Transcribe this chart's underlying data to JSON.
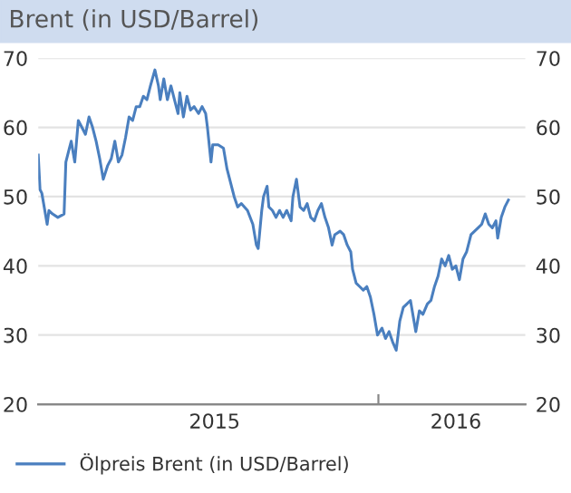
{
  "chart_data": {
    "type": "line",
    "title": "Brent (in USD/Barrel)",
    "x": [
      "2014-12-15",
      "2014-12-17",
      "2014-12-19",
      "2014-12-21",
      "2014-12-25",
      "2014-12-27",
      "2014-12-31",
      "2015-01-06",
      "2015-01-13",
      "2015-01-15",
      "2015-01-19",
      "2015-01-21",
      "2015-01-25",
      "2015-01-29",
      "2015-02-02",
      "2015-02-06",
      "2015-02-10",
      "2015-02-14",
      "2015-02-18",
      "2015-02-22",
      "2015-02-26",
      "2015-03-03",
      "2015-03-07",
      "2015-03-11",
      "2015-03-15",
      "2015-03-19",
      "2015-03-23",
      "2015-03-27",
      "2015-03-31",
      "2015-04-04",
      "2015-04-08",
      "2015-04-12",
      "2015-04-16",
      "2015-04-20",
      "2015-04-25",
      "2015-04-29",
      "2015-05-01",
      "2015-05-05",
      "2015-05-09",
      "2015-05-13",
      "2015-05-17",
      "2015-05-21",
      "2015-05-23",
      "2015-05-27",
      "2015-05-31",
      "2015-06-04",
      "2015-06-08",
      "2015-06-13",
      "2015-06-17",
      "2015-06-21",
      "2015-06-23",
      "2015-06-27",
      "2015-06-29",
      "2015-07-05",
      "2015-07-11",
      "2015-07-15",
      "2015-07-19",
      "2015-07-23",
      "2015-07-27",
      "2015-07-31",
      "2015-08-07",
      "2015-08-13",
      "2015-08-17",
      "2015-08-19",
      "2015-08-23",
      "2015-08-25",
      "2015-08-29",
      "2015-08-31",
      "2015-09-04",
      "2015-09-08",
      "2015-09-12",
      "2015-09-16",
      "2015-09-20",
      "2015-09-25",
      "2015-09-27",
      "2015-10-01",
      "2015-10-05",
      "2015-10-09",
      "2015-10-13",
      "2015-10-17",
      "2015-10-21",
      "2015-10-25",
      "2015-10-29",
      "2015-11-02",
      "2015-11-06",
      "2015-11-10",
      "2015-11-13",
      "2015-11-19",
      "2015-11-23",
      "2015-11-27",
      "2015-12-01",
      "2015-12-03",
      "2015-12-07",
      "2015-12-11",
      "2015-12-15",
      "2015-12-19",
      "2015-12-23",
      "2015-12-27",
      "2015-12-31",
      "2016-01-05",
      "2016-01-09",
      "2016-01-13",
      "2016-01-17",
      "2016-01-21",
      "2016-01-25",
      "2016-01-29",
      "2016-02-02",
      "2016-02-06",
      "2016-02-10",
      "2016-02-12",
      "2016-02-16",
      "2016-02-20",
      "2016-02-25",
      "2016-02-29",
      "2016-03-04",
      "2016-03-08",
      "2016-03-12",
      "2016-03-16",
      "2016-03-20",
      "2016-03-24",
      "2016-03-28",
      "2016-04-01",
      "2016-04-05",
      "2016-04-09",
      "2016-04-14",
      "2016-04-18",
      "2016-04-22",
      "2016-04-26",
      "2016-04-30",
      "2016-05-04",
      "2016-05-08",
      "2016-05-12",
      "2016-05-14",
      "2016-05-18",
      "2016-05-22",
      "2016-05-26"
    ],
    "series": [
      {
        "name": "Ölpreis Brent (in USD/Barrel)",
        "color": "#4a7fbf",
        "values": [
          56,
          51,
          50.5,
          49,
          46,
          48,
          47.5,
          47,
          47.5,
          55,
          57,
          58,
          55,
          61,
          60,
          59,
          61.5,
          60,
          58,
          55.5,
          52.5,
          54.5,
          55.5,
          58,
          55,
          56,
          58.5,
          61.5,
          61,
          63,
          63,
          64.5,
          64,
          66,
          68.3,
          66,
          64,
          67,
          64,
          66,
          64,
          62,
          65,
          61.5,
          64.5,
          62.5,
          63,
          62,
          63,
          62,
          60,
          55,
          57.5,
          57.5,
          57,
          54,
          52,
          50,
          48.5,
          49,
          48,
          46,
          43,
          42.5,
          48,
          50,
          51.5,
          48.5,
          48,
          47,
          48,
          47,
          48,
          46.5,
          50,
          52.5,
          48.5,
          48,
          49,
          47,
          46.5,
          48,
          49,
          47,
          45.5,
          43,
          44.5,
          45,
          44.5,
          43,
          42,
          39.5,
          37.5,
          37,
          36.5,
          37,
          35.5,
          33,
          30,
          31,
          29.5,
          30.5,
          29,
          27.8,
          32,
          34,
          34.5,
          35,
          32,
          30.5,
          33.5,
          33,
          34.5,
          35,
          37,
          38.5,
          41,
          40,
          41.5,
          39.5,
          40,
          38,
          41,
          42,
          44.5,
          45,
          45.5,
          46,
          47.5,
          46,
          45.5,
          46.5,
          44,
          47,
          48.5,
          49.5
        ]
      }
    ],
    "xlim": [
      "2014-12-15",
      "2016-06-14"
    ],
    "xticks": [
      {
        "value": "2015-07-01",
        "label": "2015"
      },
      {
        "value": "2016-01-01",
        "label": null
      },
      {
        "value": "2016-03-28",
        "label": "2016"
      }
    ],
    "ylim": [
      20,
      70
    ],
    "yticks": [
      20,
      30,
      40,
      50,
      60,
      70
    ],
    "y2lim": [
      20,
      70
    ],
    "y2ticks": [
      20,
      30,
      40,
      50,
      60,
      70
    ],
    "grid": "y",
    "legend": "bottom",
    "line_style": "solid",
    "marker": "none"
  }
}
